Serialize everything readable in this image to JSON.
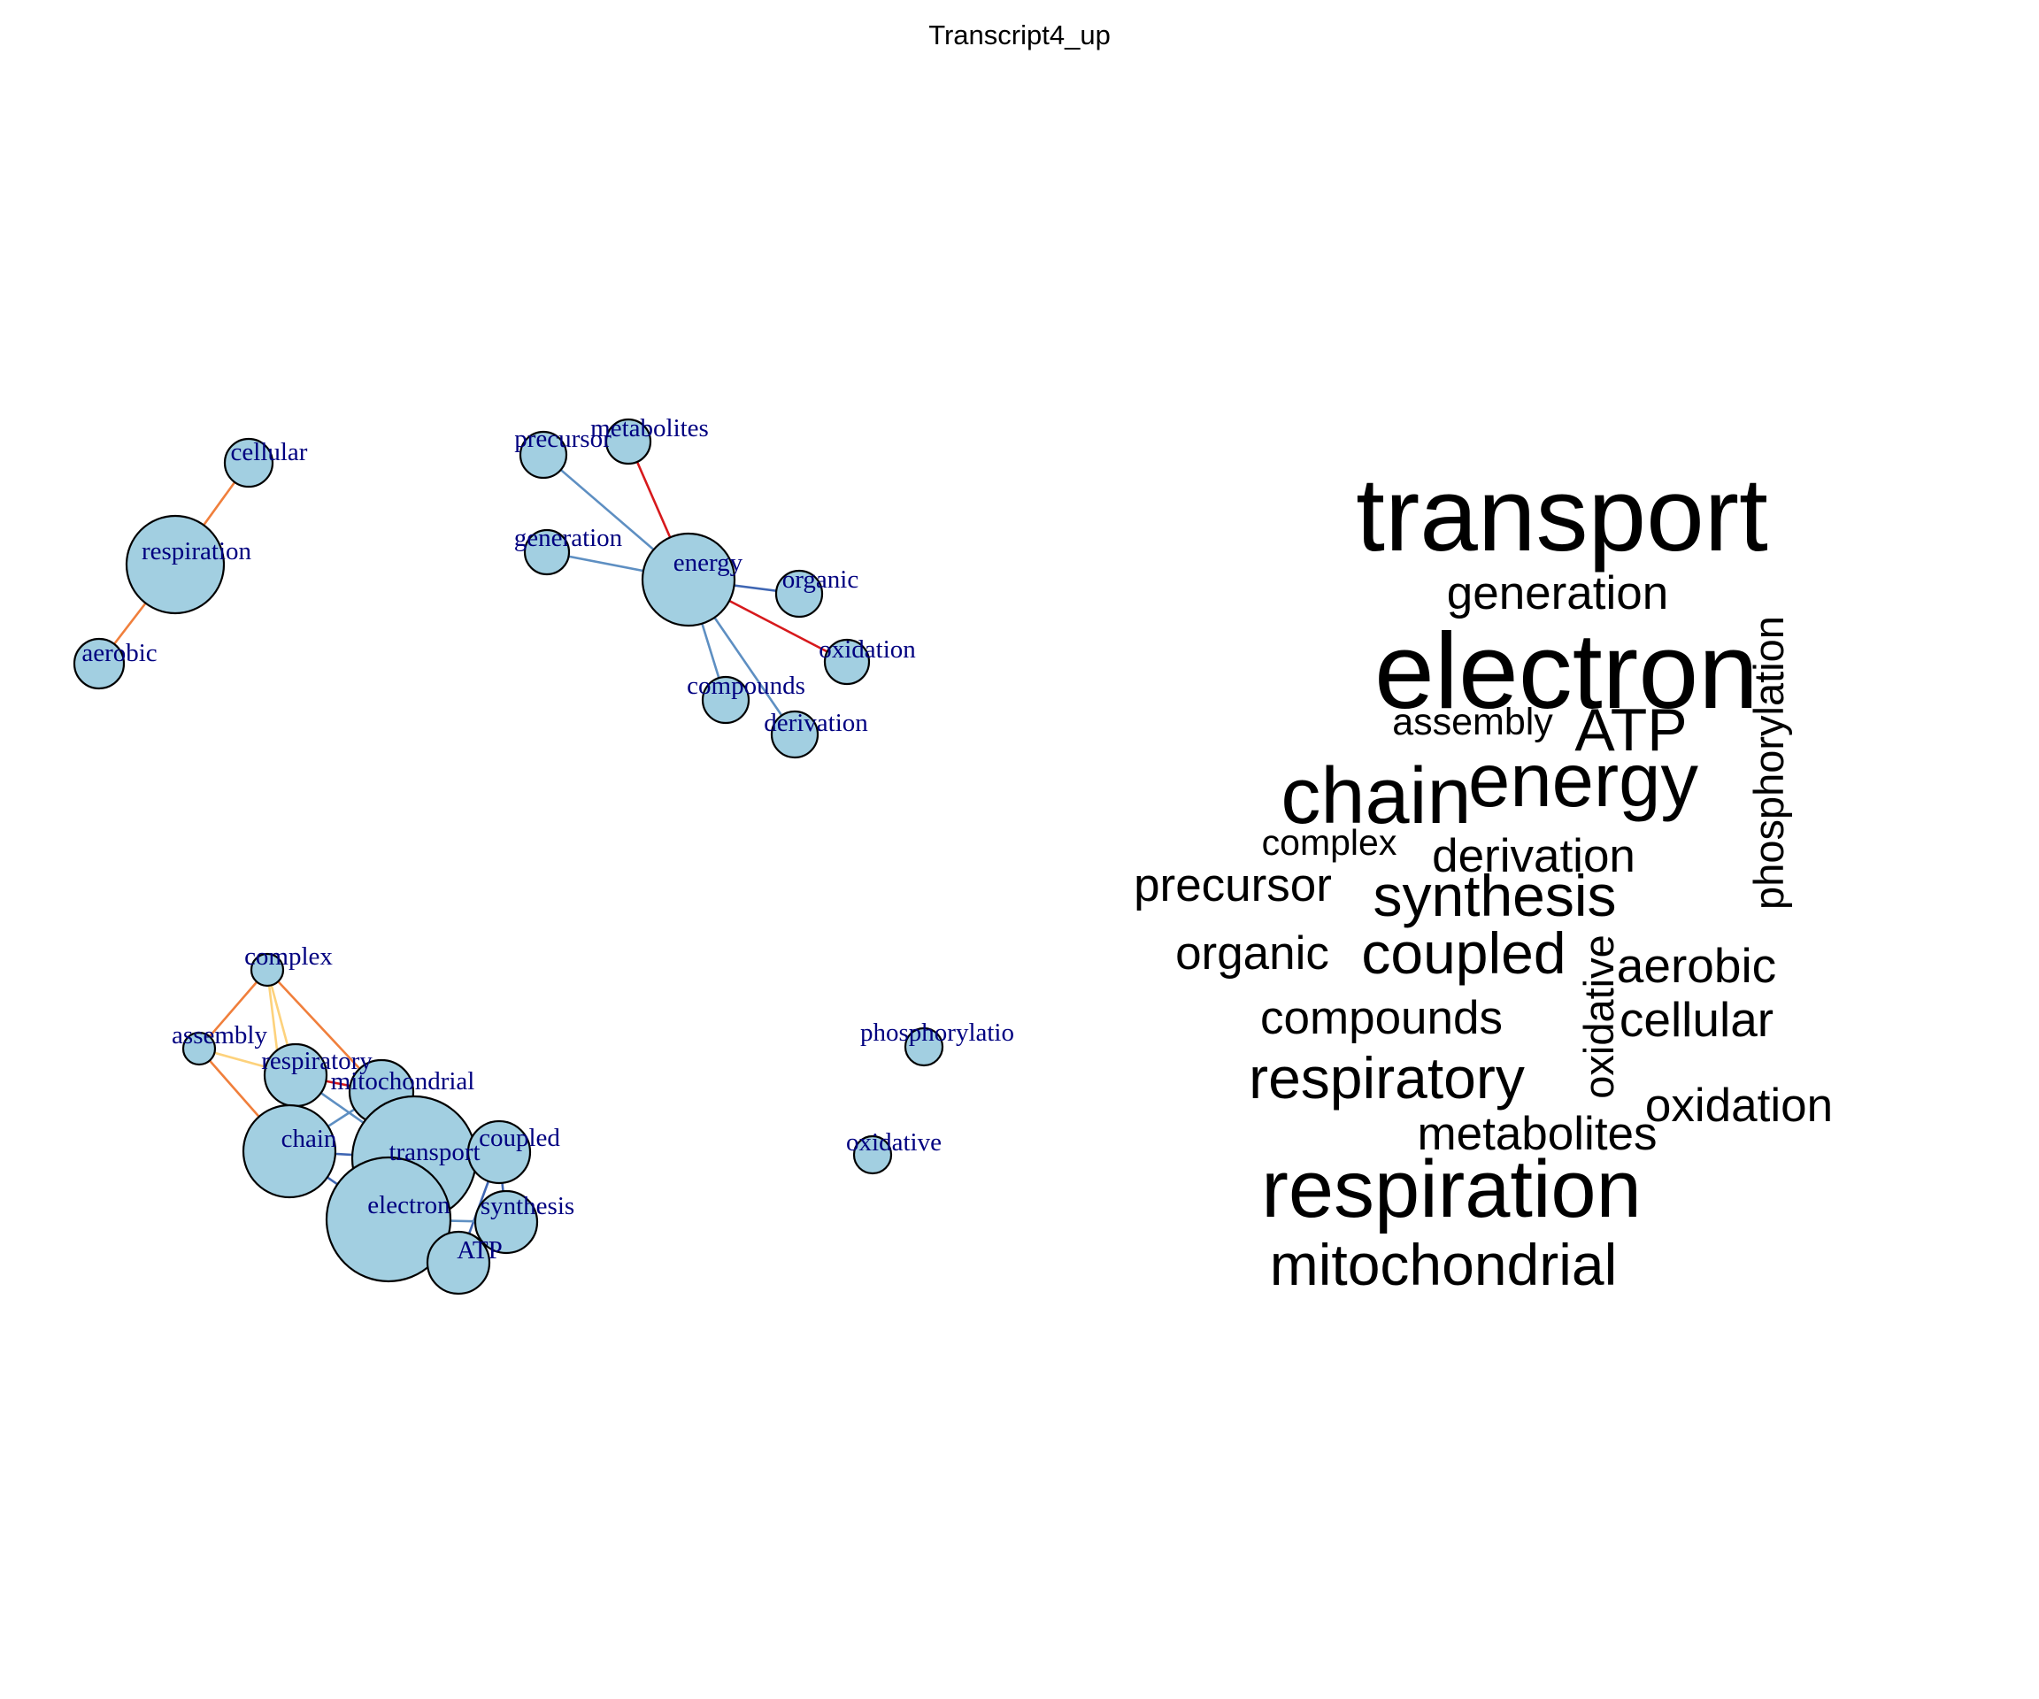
{
  "title": "Transcript4_up",
  "network": {
    "nodes": [
      {
        "id": "cellular",
        "label": "cellular"
      },
      {
        "id": "respiration",
        "label": "respiration"
      },
      {
        "id": "aerobic",
        "label": "aerobic"
      },
      {
        "id": "precursor",
        "label": "precursor"
      },
      {
        "id": "metabolites",
        "label": "metabolites"
      },
      {
        "id": "generation",
        "label": "generation"
      },
      {
        "id": "energy",
        "label": "energy"
      },
      {
        "id": "organic",
        "label": "organic"
      },
      {
        "id": "oxidation",
        "label": "oxidation"
      },
      {
        "id": "compounds",
        "label": "compounds"
      },
      {
        "id": "derivation",
        "label": "derivation"
      },
      {
        "id": "complex",
        "label": "complex"
      },
      {
        "id": "assembly",
        "label": "assembly"
      },
      {
        "id": "respiratory",
        "label": "respiratory"
      },
      {
        "id": "mitochondrial",
        "label": "mitochondrial"
      },
      {
        "id": "chain",
        "label": "chain"
      },
      {
        "id": "transport",
        "label": "transport"
      },
      {
        "id": "coupled",
        "label": "coupled"
      },
      {
        "id": "electron",
        "label": "electron"
      },
      {
        "id": "synthesis",
        "label": "synthesis"
      },
      {
        "id": "ATP",
        "label": "ATP"
      },
      {
        "id": "phosphorylation",
        "label": "phosphorylatio"
      },
      {
        "id": "oxidative",
        "label": "oxidative"
      }
    ],
    "edges": [
      {
        "source": "respiration",
        "target": "cellular",
        "color": "#f07f3c"
      },
      {
        "source": "respiration",
        "target": "aerobic",
        "color": "#f07f3c"
      },
      {
        "source": "energy",
        "target": "precursor",
        "color": "#5e8fc2"
      },
      {
        "source": "energy",
        "target": "metabolites",
        "color": "#d7191c"
      },
      {
        "source": "energy",
        "target": "generation",
        "color": "#5e8fc2"
      },
      {
        "source": "energy",
        "target": "organic",
        "color": "#3f66b3"
      },
      {
        "source": "energy",
        "target": "oxidation",
        "color": "#d7191c"
      },
      {
        "source": "energy",
        "target": "compounds",
        "color": "#5e8fc2"
      },
      {
        "source": "energy",
        "target": "derivation",
        "color": "#5e8fc2"
      },
      {
        "source": "complex",
        "target": "assembly",
        "color": "#f07f3c"
      },
      {
        "source": "complex",
        "target": "respiratory",
        "color": "#fdd27c"
      },
      {
        "source": "complex",
        "target": "mitochondrial",
        "color": "#f07f3c"
      },
      {
        "source": "complex",
        "target": "chain",
        "color": "#fdd27c"
      },
      {
        "source": "assembly",
        "target": "respiratory",
        "color": "#fdd27c"
      },
      {
        "source": "assembly",
        "target": "chain",
        "color": "#f07f3c"
      },
      {
        "source": "respiratory",
        "target": "mitochondrial",
        "color": "#d7191c"
      },
      {
        "source": "respiratory",
        "target": "chain",
        "color": "#3f66b3"
      },
      {
        "source": "respiratory",
        "target": "transport",
        "color": "#5e8fc2"
      },
      {
        "source": "mitochondrial",
        "target": "chain",
        "color": "#5e8fc2"
      },
      {
        "source": "chain",
        "target": "transport",
        "color": "#3f66b3"
      },
      {
        "source": "chain",
        "target": "electron",
        "color": "#3f66b3"
      },
      {
        "source": "transport",
        "target": "coupled",
        "color": "#5e8fc2"
      },
      {
        "source": "electron",
        "target": "coupled",
        "color": "#5e8fc2"
      },
      {
        "source": "coupled",
        "target": "synthesis",
        "color": "#3f66b3"
      },
      {
        "source": "coupled",
        "target": "ATP",
        "color": "#3f66b3"
      },
      {
        "source": "synthesis",
        "target": "ATP",
        "color": "#3f66b3"
      },
      {
        "source": "electron",
        "target": "synthesis",
        "color": "#5e8fc2"
      },
      {
        "source": "electron",
        "target": "ATP",
        "color": "#5e8fc2"
      }
    ]
  },
  "wordcloud": {
    "words": [
      {
        "text": "transport",
        "vertical": false
      },
      {
        "text": "generation",
        "vertical": false
      },
      {
        "text": "electron",
        "vertical": false
      },
      {
        "text": "phosphorylation",
        "vertical": true
      },
      {
        "text": "assembly",
        "vertical": false
      },
      {
        "text": "ATP",
        "vertical": false
      },
      {
        "text": "chain",
        "vertical": false
      },
      {
        "text": "energy",
        "vertical": false
      },
      {
        "text": "complex",
        "vertical": false
      },
      {
        "text": "derivation",
        "vertical": false
      },
      {
        "text": "precursor",
        "vertical": false
      },
      {
        "text": "synthesis",
        "vertical": false
      },
      {
        "text": "organic",
        "vertical": false
      },
      {
        "text": "coupled",
        "vertical": false
      },
      {
        "text": "oxidative",
        "vertical": true
      },
      {
        "text": "aerobic",
        "vertical": false
      },
      {
        "text": "compounds",
        "vertical": false
      },
      {
        "text": "cellular",
        "vertical": false
      },
      {
        "text": "respiratory",
        "vertical": false
      },
      {
        "text": "oxidation",
        "vertical": false
      },
      {
        "text": "metabolites",
        "vertical": false
      },
      {
        "text": "respiration",
        "vertical": false
      },
      {
        "text": "mitochondrial",
        "vertical": false
      }
    ]
  }
}
